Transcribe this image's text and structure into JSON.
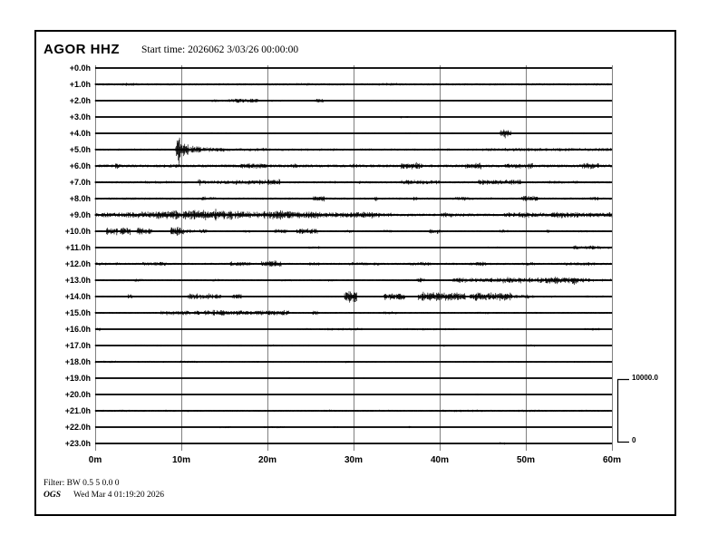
{
  "header": {
    "station_label": "AGOR HHZ",
    "start_time_label": "Start time: 2026062  3/03/26 00:00:00"
  },
  "footer": {
    "filter_label": "Filter: BW 0.5 5 0.0 0",
    "agency_label": "OGS",
    "generated_label": "Wed Mar  4 01:19:20 2026"
  },
  "scale_bar": {
    "max_label": "10000.0",
    "min_label": "0"
  },
  "chart_data": {
    "type": "line",
    "subtype": "helicorder-seismogram",
    "title": "AGOR HHZ",
    "xlabel_unit": "minutes",
    "x_tick_labels": [
      "0m",
      "10m",
      "20m",
      "30m",
      "40m",
      "50m",
      "60m"
    ],
    "x_range_minutes": [
      0,
      60
    ],
    "minutes_per_gridline": 10,
    "grid_on": true,
    "colors": {
      "trace": "#000000",
      "grid": "#808080",
      "frame": "#000000",
      "background": "#ffffff"
    },
    "amplitude_scale": {
      "max": 10000.0,
      "min": 0
    },
    "rows": [
      {
        "label": "+0.0h",
        "base": 0.2,
        "events": [],
        "spikes": []
      },
      {
        "label": "+1.0h",
        "base": 1.1,
        "events": [
          [
            3,
            5,
            1.4
          ],
          [
            23,
            25,
            1.4
          ],
          [
            33,
            35,
            1.3
          ],
          [
            44,
            46,
            1.2
          ]
        ],
        "spikes": []
      },
      {
        "label": "+2.0h",
        "base": 0.6,
        "events": [
          [
            13.5,
            16,
            1.4
          ],
          [
            16,
            19,
            2.0
          ],
          [
            20,
            22,
            1.0
          ],
          [
            25.5,
            26.5,
            1.7
          ]
        ],
        "spikes": [
          [
            26,
            2.2
          ]
        ]
      },
      {
        "label": "+3.0h",
        "base": 0.25,
        "events": [],
        "spikes": [
          [
            20,
            1.2
          ],
          [
            35.5,
            1.6
          ],
          [
            36.2,
            1.4
          ]
        ]
      },
      {
        "label": "+4.0h",
        "base": 0.4,
        "events": [
          [
            5,
            8,
            0.7
          ],
          [
            13,
            16,
            0.8
          ],
          [
            19,
            21,
            0.7
          ],
          [
            25,
            26,
            0.8
          ],
          [
            31,
            33,
            0.7
          ],
          [
            36,
            38,
            0.8
          ],
          [
            41,
            43,
            0.7
          ],
          [
            47,
            48.3,
            3.4
          ],
          [
            55,
            57,
            0.7
          ]
        ],
        "spikes": [
          [
            47.6,
            4.5
          ]
        ]
      },
      {
        "label": "+5.0h",
        "base": 0.9,
        "events": [
          [
            0,
            9.4,
            1.0
          ],
          [
            9.45,
            9.95,
            13
          ],
          [
            9.95,
            10.8,
            6.5
          ],
          [
            10.8,
            12.3,
            3.4
          ],
          [
            12.3,
            15,
            2.2
          ],
          [
            15,
            20,
            1.6
          ],
          [
            20,
            30,
            1.2
          ],
          [
            30,
            45,
            1.1
          ],
          [
            45,
            52,
            1.6
          ],
          [
            52,
            60,
            1.5
          ]
        ],
        "spikes": [
          [
            9.62,
            15
          ]
        ]
      },
      {
        "label": "+6.0h",
        "base": 1.4,
        "events": [
          [
            2.3,
            2.9,
            2.8
          ],
          [
            8,
            10,
            1.8
          ],
          [
            16.5,
            20,
            2.4
          ],
          [
            22.5,
            23.5,
            2.2
          ],
          [
            29.5,
            30.5,
            2.0
          ],
          [
            35.5,
            38,
            3.2
          ],
          [
            43,
            45,
            3.0
          ],
          [
            47.5,
            50,
            2.4
          ],
          [
            50.3,
            50.8,
            3.0
          ],
          [
            56.5,
            58.5,
            2.8
          ]
        ],
        "spikes": [
          [
            2.5,
            3.2
          ],
          [
            36.5,
            3.6
          ],
          [
            57.5,
            3.0
          ]
        ]
      },
      {
        "label": "+7.0h",
        "base": 1.1,
        "events": [
          [
            5,
            10,
            1.3
          ],
          [
            12.5,
            16,
            1.8
          ],
          [
            16,
            20,
            2.2
          ],
          [
            20,
            21.5,
            3.0
          ],
          [
            26,
            28,
            1.3
          ],
          [
            30,
            31,
            1.5
          ],
          [
            35.5,
            40,
            2.2
          ],
          [
            44.5,
            49.5,
            2.6
          ],
          [
            52,
            56,
            1.4
          ]
        ],
        "spikes": [
          [
            12.1,
            4.0
          ],
          [
            47.8,
            3.2
          ]
        ]
      },
      {
        "label": "+8.0h",
        "base": 1.1,
        "events": [
          [
            2,
            7,
            1.2
          ],
          [
            13,
            14,
            1.5
          ],
          [
            25.3,
            26.6,
            3.2
          ],
          [
            36.8,
            37.4,
            2.2
          ],
          [
            41.5,
            44,
            1.8
          ],
          [
            49.5,
            51.5,
            2.4
          ],
          [
            57.5,
            58.5,
            1.8
          ]
        ],
        "spikes": [
          [
            12.6,
            4.0
          ],
          [
            32.6,
            3.0
          ],
          [
            46,
            1.8
          ]
        ]
      },
      {
        "label": "+9.0h",
        "base": 1.3,
        "events": [
          [
            0,
            3,
            2.2
          ],
          [
            3,
            7,
            3.0
          ],
          [
            7,
            10.5,
            4.2
          ],
          [
            10.5,
            13.5,
            5.0
          ],
          [
            13.5,
            17,
            4.2
          ],
          [
            17,
            20,
            3.6
          ],
          [
            20,
            23,
            4.4
          ],
          [
            23,
            26,
            3.2
          ],
          [
            26,
            30,
            2.6
          ],
          [
            30,
            33,
            3.0
          ],
          [
            33,
            34.5,
            2.0
          ],
          [
            36,
            37,
            1.6
          ],
          [
            40,
            41.5,
            2.4
          ],
          [
            41.5,
            44,
            1.6
          ],
          [
            47.5,
            50.5,
            2.8
          ],
          [
            50.5,
            53,
            2.2
          ],
          [
            53,
            56.5,
            3.0
          ],
          [
            56.5,
            60,
            2.4
          ]
        ],
        "spikes": [
          [
            11,
            6.0
          ],
          [
            14,
            6.5
          ],
          [
            21,
            5.5
          ],
          [
            31,
            4.0
          ]
        ]
      },
      {
        "label": "+10.0h",
        "base": 0.9,
        "events": [
          [
            1.3,
            2.6,
            3.4
          ],
          [
            2.9,
            4.1,
            3.8
          ],
          [
            4.8,
            6.6,
            3.4
          ],
          [
            8.7,
            10.3,
            4.6
          ],
          [
            10.3,
            13,
            1.8
          ],
          [
            17,
            18,
            1.6
          ],
          [
            20.8,
            22.3,
            2.2
          ],
          [
            23.3,
            25.8,
            2.6
          ],
          [
            29,
            30,
            1.5
          ],
          [
            33.5,
            34.5,
            1.5
          ],
          [
            38.8,
            40.3,
            2.4
          ],
          [
            47,
            48,
            1.6
          ],
          [
            56,
            58,
            1.2
          ]
        ],
        "spikes": [
          [
            9.5,
            5.5
          ],
          [
            24,
            3.0
          ],
          [
            52.6,
            2.2
          ]
        ]
      },
      {
        "label": "+11.0h",
        "base": 0.6,
        "events": [
          [
            10,
            12,
            0.8
          ],
          [
            24.8,
            26,
            1.3
          ],
          [
            30.5,
            31.5,
            0.9
          ],
          [
            45.5,
            47,
            1.0
          ],
          [
            55.5,
            58.5,
            1.9
          ],
          [
            58.5,
            60,
            1.4
          ]
        ],
        "spikes": [
          [
            26,
            1.6
          ]
        ]
      },
      {
        "label": "+12.0h",
        "base": 1.1,
        "events": [
          [
            0,
            3,
            1.4
          ],
          [
            5.5,
            8.5,
            1.9
          ],
          [
            15.5,
            18,
            2.2
          ],
          [
            19.3,
            21.6,
            3.2
          ],
          [
            24,
            26,
            1.5
          ],
          [
            29.5,
            33,
            1.7
          ],
          [
            36.5,
            39,
            1.9
          ],
          [
            43.5,
            45.5,
            1.9
          ],
          [
            49.5,
            51,
            1.9
          ],
          [
            54.5,
            58,
            1.7
          ]
        ],
        "spikes": [
          [
            20.5,
            3.5
          ]
        ]
      },
      {
        "label": "+13.0h",
        "base": 0.9,
        "events": [
          [
            4.5,
            5.5,
            1.3
          ],
          [
            13.5,
            14.5,
            1.4
          ],
          [
            21,
            23,
            1.2
          ],
          [
            27,
            28,
            1.2
          ],
          [
            37.3,
            38.3,
            2.4
          ],
          [
            41.5,
            46.5,
            2.2
          ],
          [
            46.5,
            52,
            2.8
          ],
          [
            52,
            56,
            3.2
          ],
          [
            56,
            57.5,
            2.0
          ],
          [
            57.5,
            60,
            1.3
          ]
        ],
        "spikes": [
          [
            37.8,
            2.8
          ],
          [
            53,
            3.5
          ],
          [
            55.6,
            5.0
          ]
        ]
      },
      {
        "label": "+14.0h",
        "base": 0.8,
        "events": [
          [
            3.8,
            4.4,
            2.0
          ],
          [
            10.8,
            14.6,
            2.8
          ],
          [
            15.8,
            17,
            2.4
          ],
          [
            28.9,
            30.4,
            5.0
          ],
          [
            33.5,
            36,
            3.6
          ],
          [
            37.5,
            43,
            4.2
          ],
          [
            43.5,
            48.3,
            3.8
          ],
          [
            48.3,
            51,
            2.0
          ],
          [
            52,
            54,
            1.2
          ],
          [
            57,
            59,
            1.2
          ]
        ],
        "spikes": [
          [
            29.5,
            7.0
          ],
          [
            40,
            5.0
          ],
          [
            44.2,
            5.5
          ]
        ]
      },
      {
        "label": "+15.0h",
        "base": 0.9,
        "events": [
          [
            7.5,
            11,
            2.0
          ],
          [
            11.5,
            16,
            2.6
          ],
          [
            16,
            19,
            2.2
          ],
          [
            19,
            22.5,
            2.5
          ],
          [
            25.2,
            25.8,
            1.8
          ],
          [
            33.5,
            35,
            1.4
          ],
          [
            44,
            46,
            1.1
          ],
          [
            50,
            52,
            1.0
          ]
        ],
        "spikes": [
          [
            25.5,
            2.2
          ]
        ]
      },
      {
        "label": "+16.0h",
        "base": 0.4,
        "events": [
          [
            23.5,
            27,
            1.0
          ],
          [
            27,
            31,
            1.2
          ],
          [
            34.5,
            38,
            1.0
          ],
          [
            38,
            42,
            1.1
          ],
          [
            46,
            48,
            0.9
          ],
          [
            56.8,
            58.6,
            1.2
          ]
        ],
        "spikes": [
          [
            0.4,
            2.6
          ]
        ]
      },
      {
        "label": "+17.0h",
        "base": 0.6,
        "events": [
          [
            4,
            9,
            0.8
          ],
          [
            12,
            25,
            0.8
          ],
          [
            19.8,
            21,
            1.1
          ],
          [
            31,
            33,
            0.7
          ],
          [
            49.8,
            51,
            1.1
          ]
        ],
        "spikes": [
          [
            40.5,
            1.2
          ]
        ]
      },
      {
        "label": "+18.0h",
        "base": 0.7,
        "events": [
          [
            0,
            3,
            1.0
          ],
          [
            5,
            8,
            0.9
          ],
          [
            9.8,
            12,
            1.2
          ],
          [
            14,
            16,
            0.9
          ],
          [
            18,
            20,
            0.8
          ],
          [
            24,
            26,
            0.8
          ],
          [
            29,
            29.6,
            1.3
          ],
          [
            33,
            35,
            0.7
          ],
          [
            41,
            43,
            0.7
          ],
          [
            48,
            50,
            0.8
          ],
          [
            55,
            57,
            0.8
          ]
        ],
        "spikes": []
      },
      {
        "label": "+19.0h",
        "base": 0.25,
        "events": [],
        "spikes": [
          [
            22.5,
            0.9
          ],
          [
            31.2,
            0.9
          ]
        ]
      },
      {
        "label": "+20.0h",
        "base": 0.25,
        "events": [
          [
            44.2,
            45,
            0.9
          ]
        ],
        "spikes": [
          [
            48.2,
            1.0
          ],
          [
            57,
            0.8
          ]
        ]
      },
      {
        "label": "+21.0h",
        "base": 0.9,
        "events": [
          [
            0,
            4,
            1.1
          ],
          [
            8,
            11,
            1.0
          ],
          [
            26,
            28.5,
            1.2
          ],
          [
            33,
            35,
            1.0
          ],
          [
            40,
            43,
            1.2
          ],
          [
            43,
            46,
            1.1
          ],
          [
            49,
            52,
            1.1
          ],
          [
            56,
            58,
            1.0
          ]
        ],
        "spikes": []
      },
      {
        "label": "+22.0h",
        "base": 0.3,
        "events": [
          [
            14.5,
            15.7,
            1.0
          ],
          [
            19.5,
            22,
            0.9
          ],
          [
            27.5,
            28.2,
            1.1
          ]
        ],
        "spikes": [
          [
            36.5,
            1.4
          ]
        ]
      },
      {
        "label": "+23.0h",
        "base": 0.2,
        "events": [
          [
            46.8,
            47.6,
            1.1
          ]
        ],
        "spikes": []
      }
    ]
  }
}
